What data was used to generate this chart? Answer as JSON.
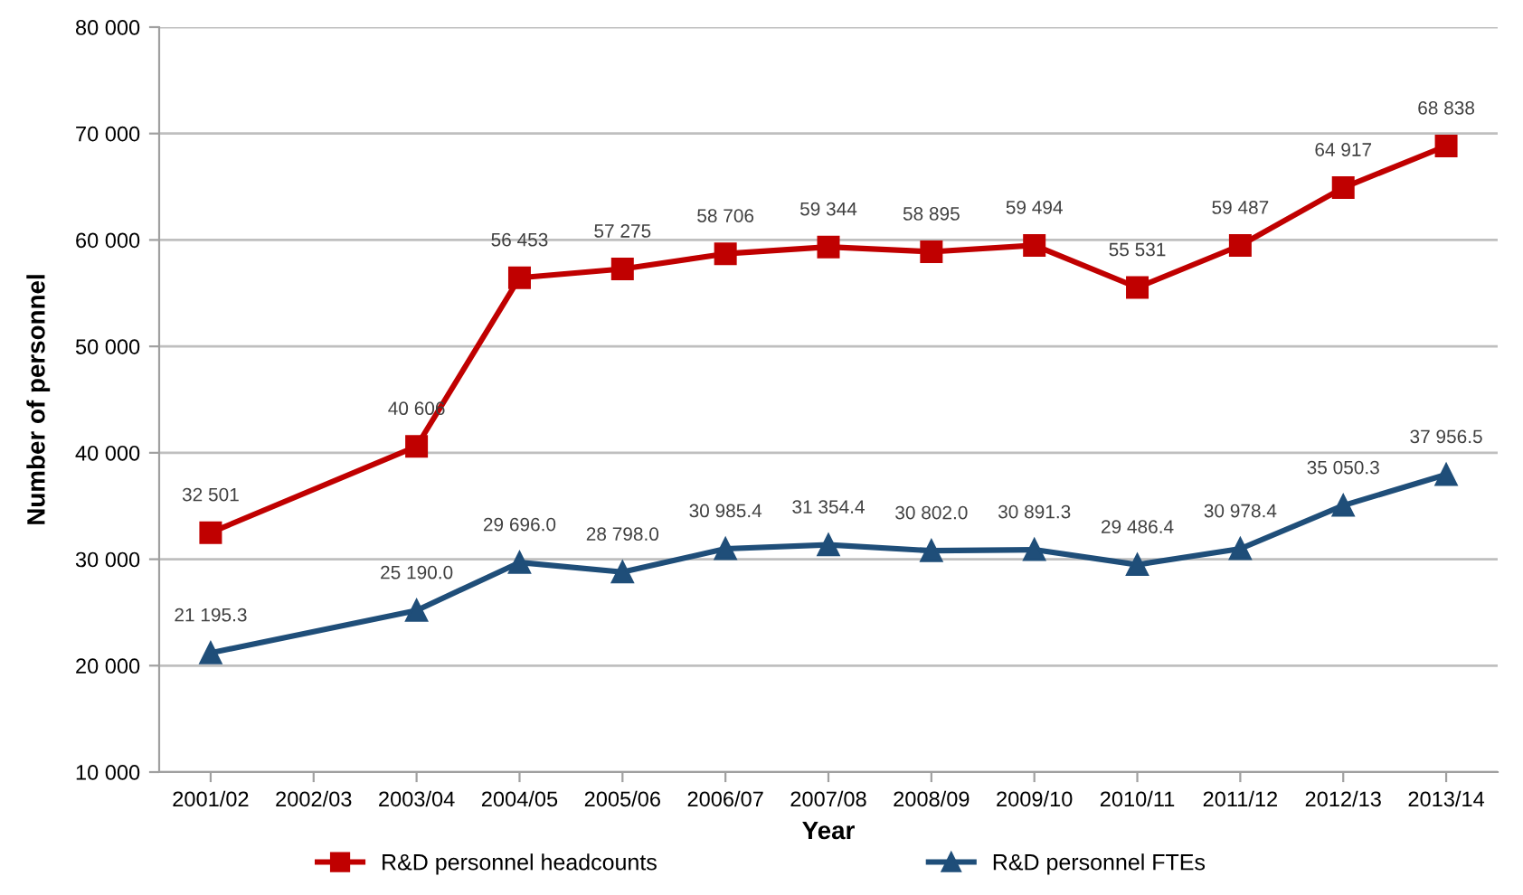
{
  "chart_data": {
    "type": "line",
    "xlabel": "Year",
    "ylabel": "Number of personnel",
    "categories": [
      "2001/02",
      "2002/03",
      "2003/04",
      "2004/05",
      "2005/06",
      "2006/07",
      "2007/08",
      "2008/09",
      "2009/10",
      "2010/11",
      "2011/12",
      "2012/13",
      "2013/14"
    ],
    "series": [
      {
        "name": "R&D personnel headcounts",
        "color": "#c00000",
        "marker": "square",
        "values": [
          32501,
          null,
          40606,
          56453,
          57275,
          58706,
          59344,
          58895,
          59494,
          55531,
          59487,
          64917,
          68838
        ],
        "value_labels": [
          "32 501",
          null,
          "40 606",
          "56 453",
          "57 275",
          "58 706",
          "59 344",
          "58 895",
          "59 494",
          "55 531",
          "59 487",
          "64 917",
          "68 838"
        ]
      },
      {
        "name": "R&D personnel FTEs",
        "color": "#1f4e79",
        "marker": "triangle",
        "values": [
          21195.3,
          null,
          25190.0,
          29696.0,
          28798.0,
          30985.4,
          31354.4,
          30802.0,
          30891.3,
          29486.4,
          30978.4,
          35050.3,
          37956.5
        ],
        "value_labels": [
          "21 195.3",
          null,
          "25 190.0",
          "29 696.0",
          "28 798.0",
          "30 985.4",
          "31 354.4",
          "30 802.0",
          "30 891.3",
          "29 486.4",
          "30 978.4",
          "35 050.3",
          "37 956.5"
        ]
      }
    ],
    "ylim": [
      10000,
      80000
    ],
    "yticks": [
      {
        "value": 10000,
        "label": "10 000"
      },
      {
        "value": 20000,
        "label": "20 000"
      },
      {
        "value": 30000,
        "label": "30 000"
      },
      {
        "value": 40000,
        "label": "40 000"
      },
      {
        "value": 50000,
        "label": "50 000"
      },
      {
        "value": 60000,
        "label": "60 000"
      },
      {
        "value": 70000,
        "label": "70 000"
      },
      {
        "value": 80000,
        "label": "80 000"
      }
    ],
    "grid": "y",
    "legend": "bottom",
    "line_style": "solid"
  }
}
